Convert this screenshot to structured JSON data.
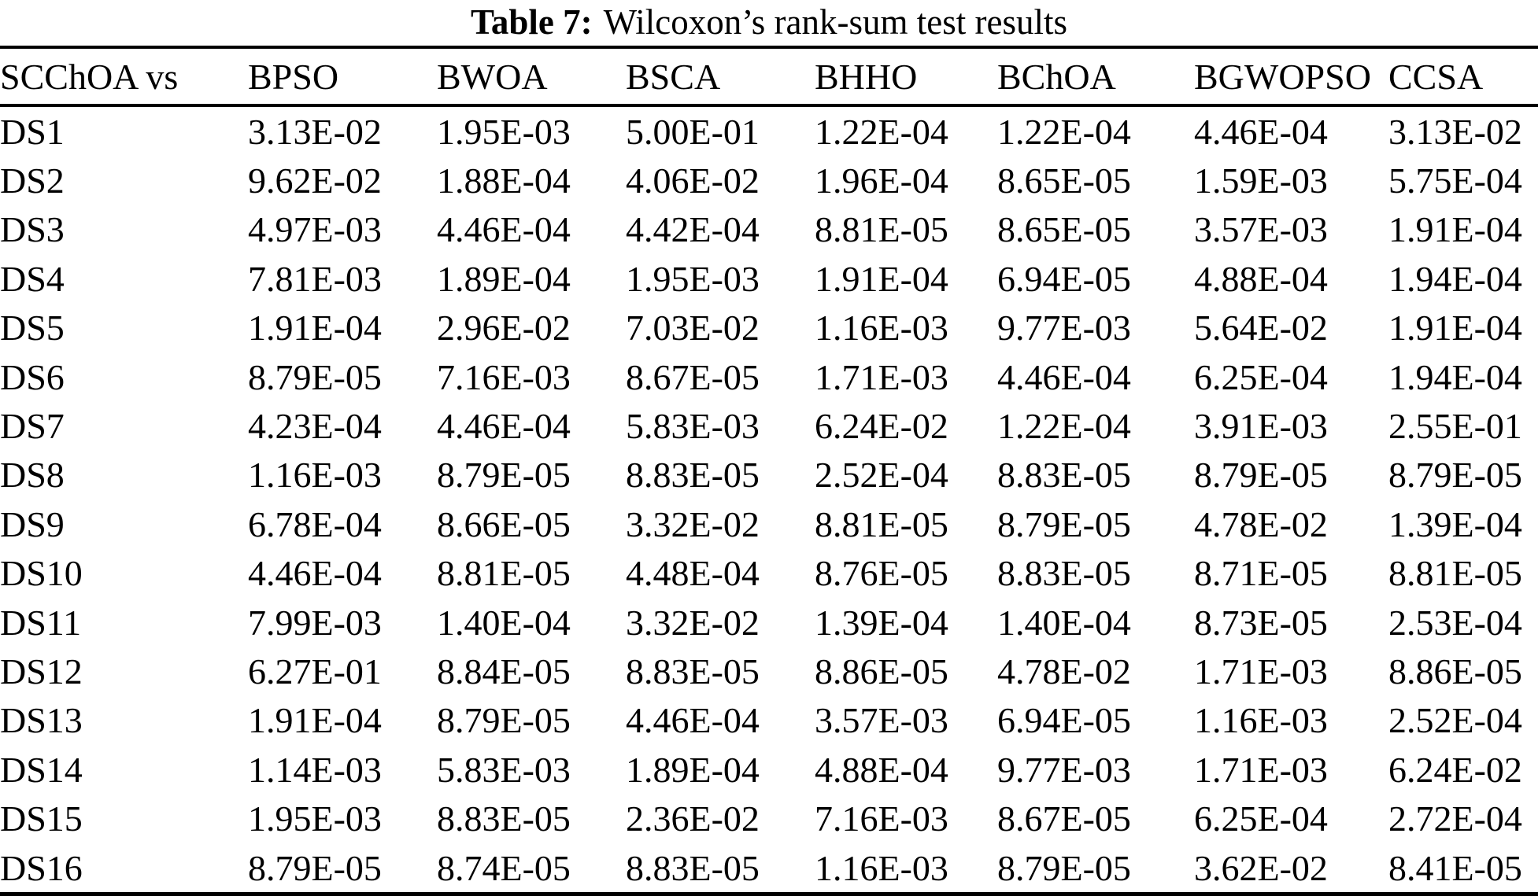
{
  "caption": {
    "label": "Table 7:",
    "text": "Wilcoxon’s rank-sum test results"
  },
  "table": {
    "header": [
      "SCChOA vs",
      "BPSO",
      "BWOA",
      "BSCA",
      "BHHO",
      "BChOA",
      "BGWOPSO",
      "CCSA"
    ],
    "rows": [
      {
        "name": "DS1",
        "values": [
          "3.13E-02",
          "1.95E-03",
          "5.00E-01",
          "1.22E-04",
          "1.22E-04",
          "4.46E-04",
          "3.13E-02"
        ]
      },
      {
        "name": "DS2",
        "values": [
          "9.62E-02",
          "1.88E-04",
          "4.06E-02",
          "1.96E-04",
          "8.65E-05",
          "1.59E-03",
          "5.75E-04"
        ]
      },
      {
        "name": "DS3",
        "values": [
          "4.97E-03",
          "4.46E-04",
          "4.42E-04",
          "8.81E-05",
          "8.65E-05",
          "3.57E-03",
          "1.91E-04"
        ]
      },
      {
        "name": "DS4",
        "values": [
          "7.81E-03",
          "1.89E-04",
          "1.95E-03",
          "1.91E-04",
          "6.94E-05",
          "4.88E-04",
          "1.94E-04"
        ]
      },
      {
        "name": "DS5",
        "values": [
          "1.91E-04",
          "2.96E-02",
          "7.03E-02",
          "1.16E-03",
          "9.77E-03",
          "5.64E-02",
          "1.91E-04"
        ]
      },
      {
        "name": "DS6",
        "values": [
          "8.79E-05",
          "7.16E-03",
          "8.67E-05",
          "1.71E-03",
          "4.46E-04",
          "6.25E-04",
          "1.94E-04"
        ]
      },
      {
        "name": "DS7",
        "values": [
          "4.23E-04",
          "4.46E-04",
          "5.83E-03",
          "6.24E-02",
          "1.22E-04",
          "3.91E-03",
          "2.55E-01"
        ]
      },
      {
        "name": "DS8",
        "values": [
          "1.16E-03",
          "8.79E-05",
          "8.83E-05",
          "2.52E-04",
          "8.83E-05",
          "8.79E-05",
          "8.79E-05"
        ]
      },
      {
        "name": "DS9",
        "values": [
          "6.78E-04",
          "8.66E-05",
          "3.32E-02",
          "8.81E-05",
          "8.79E-05",
          "4.78E-02",
          "1.39E-04"
        ]
      },
      {
        "name": "DS10",
        "values": [
          "4.46E-04",
          "8.81E-05",
          "4.48E-04",
          "8.76E-05",
          "8.83E-05",
          "8.71E-05",
          "8.81E-05"
        ]
      },
      {
        "name": "DS11",
        "values": [
          "7.99E-03",
          "1.40E-04",
          "3.32E-02",
          "1.39E-04",
          "1.40E-04",
          "8.73E-05",
          "2.53E-04"
        ]
      },
      {
        "name": "DS12",
        "values": [
          "6.27E-01",
          "8.84E-05",
          "8.83E-05",
          "8.86E-05",
          "4.78E-02",
          "1.71E-03",
          "8.86E-05"
        ]
      },
      {
        "name": "DS13",
        "values": [
          "1.91E-04",
          "8.79E-05",
          "4.46E-04",
          "3.57E-03",
          "6.94E-05",
          "1.16E-03",
          "2.52E-04"
        ]
      },
      {
        "name": "DS14",
        "values": [
          "1.14E-03",
          "5.83E-03",
          "1.89E-04",
          "4.88E-04",
          "9.77E-03",
          "1.71E-03",
          "6.24E-02"
        ]
      },
      {
        "name": "DS15",
        "values": [
          "1.95E-03",
          "8.83E-05",
          "2.36E-02",
          "7.16E-03",
          "8.67E-05",
          "6.25E-04",
          "2.72E-04"
        ]
      },
      {
        "name": "DS16",
        "values": [
          "8.79E-05",
          "8.74E-05",
          "8.83E-05",
          "1.16E-03",
          "8.79E-05",
          "3.62E-02",
          "8.41E-05"
        ]
      }
    ]
  }
}
